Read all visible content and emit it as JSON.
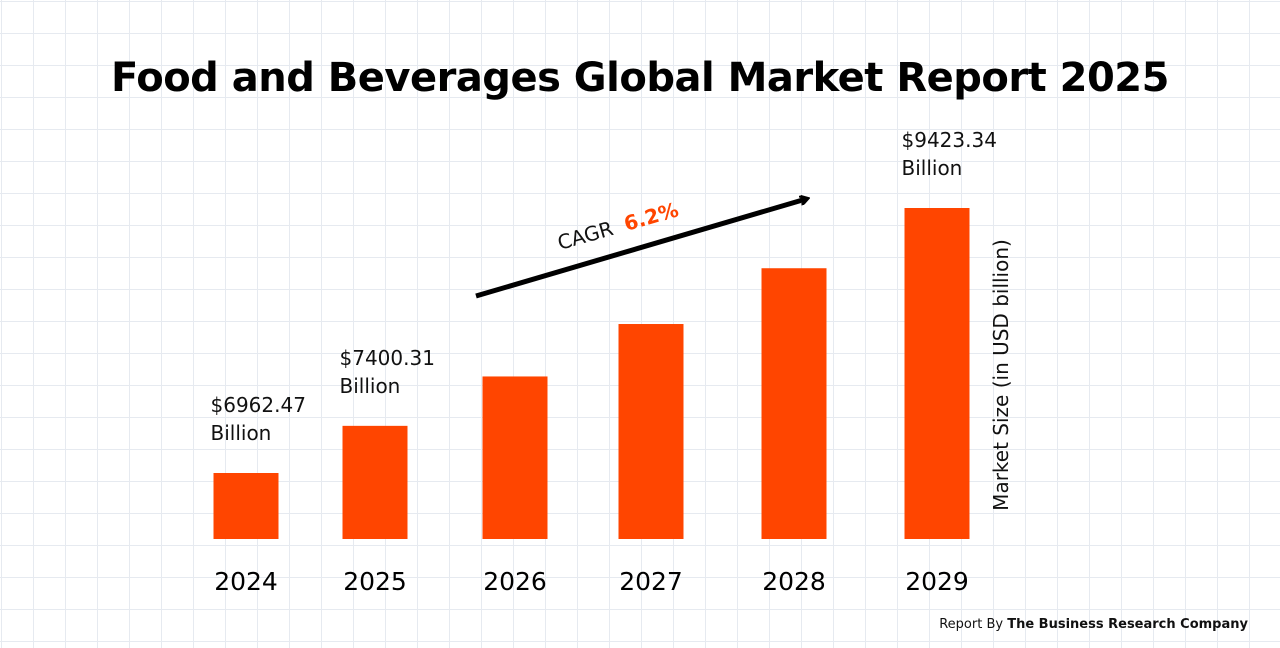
{
  "chart_data": {
    "type": "bar",
    "title": "Food and Beverages Global Market Report 2025",
    "categories": [
      "2024",
      "2025",
      "2026",
      "2027",
      "2028",
      "2029"
    ],
    "values": [
      6962.47,
      7400.31,
      7859,
      8346,
      8864,
      9423.34
    ],
    "value_labels": [
      {
        "amount": "$6962.47",
        "unit": "Billion"
      },
      {
        "amount": "$7400.31",
        "unit": "Billion"
      },
      null,
      null,
      null,
      {
        "amount": "$9423.34",
        "unit": "Billion"
      }
    ],
    "xlabel": "",
    "ylabel": "Market Size (in USD billion)",
    "ylim": [
      6500,
      9500
    ],
    "grid": true,
    "bar_color": "#ff4500",
    "annotation": {
      "prefix": "CAGR",
      "value": "6.2%",
      "value_color": "#ff4500",
      "arrow": "upward trend arrow from 2025 to 2028"
    }
  },
  "footer": {
    "prefix": "Report By",
    "company": "The Business Research Company"
  }
}
